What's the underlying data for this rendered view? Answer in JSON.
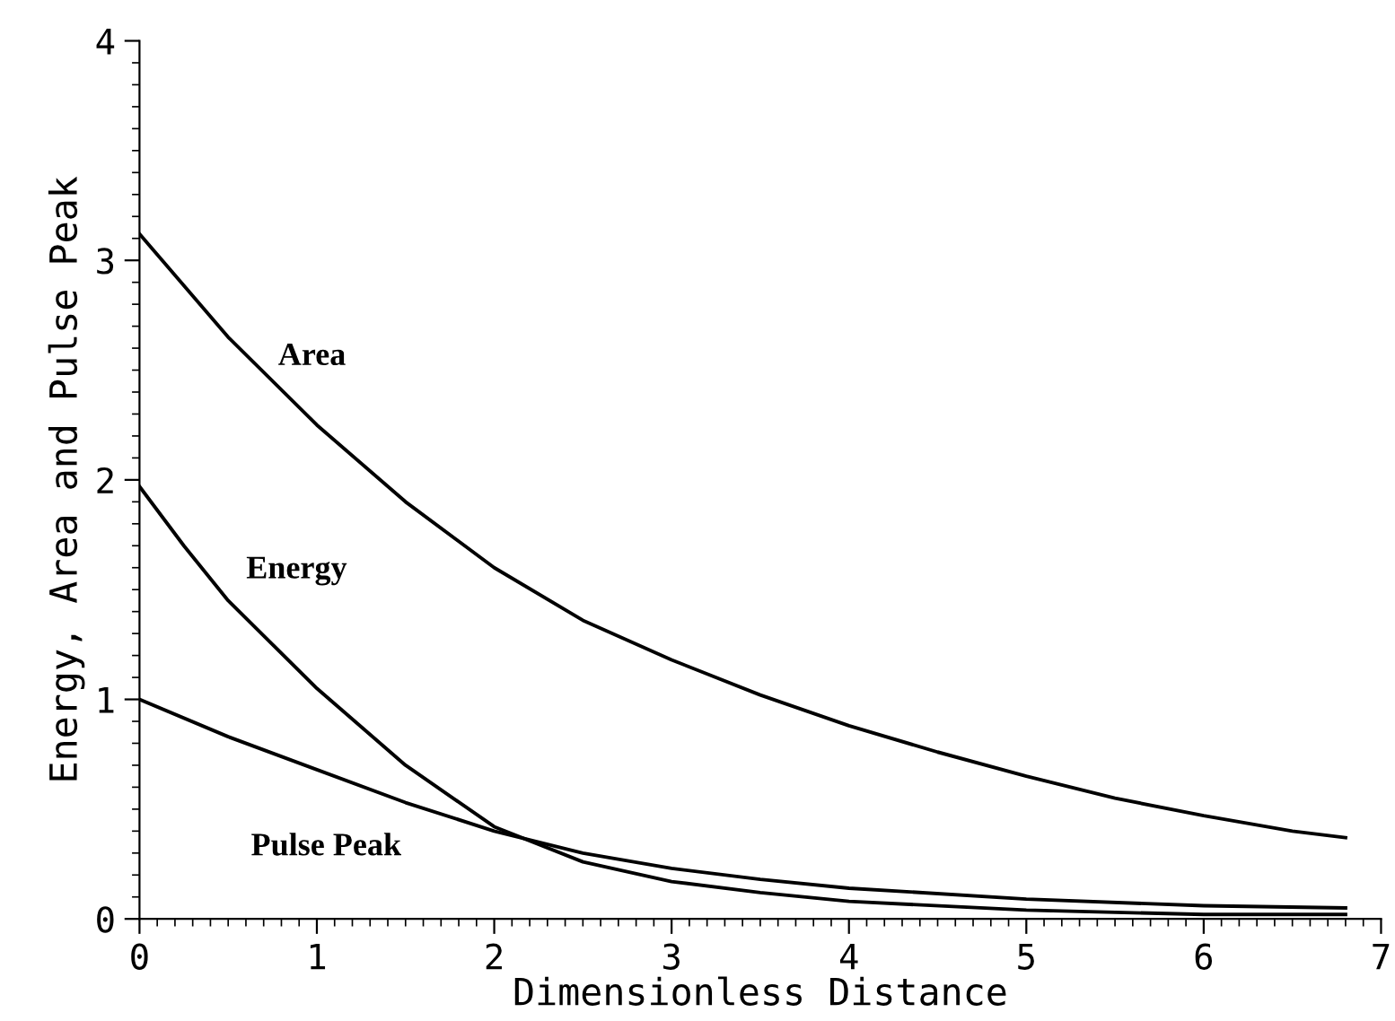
{
  "chart_data": {
    "type": "line",
    "xlabel": "Dimensionless Distance",
    "ylabel": "Energy, Area and Pulse Peak",
    "xlim": [
      0,
      7
    ],
    "xticks": [
      0,
      1,
      2,
      3,
      4,
      5,
      6,
      7
    ],
    "ylim": [
      0,
      4
    ],
    "yticks": [
      0,
      1,
      2,
      3,
      4
    ],
    "grid": false,
    "line_style": "solid",
    "marker": "none",
    "series": [
      {
        "name": "Area",
        "color": "#000000",
        "x": [
          0,
          0.5,
          1,
          1.5,
          2,
          2.5,
          3,
          3.5,
          4,
          4.5,
          5,
          5.5,
          6,
          6.5,
          6.8
        ],
        "values": [
          3.12,
          2.65,
          2.25,
          1.9,
          1.6,
          1.36,
          1.18,
          1.02,
          0.88,
          0.76,
          0.65,
          0.55,
          0.47,
          0.4,
          0.37
        ]
      },
      {
        "name": "Energy",
        "color": "#000000",
        "x": [
          0,
          0.25,
          0.5,
          1,
          1.5,
          2,
          2.5,
          3,
          3.5,
          4,
          5,
          6,
          6.8
        ],
        "values": [
          1.97,
          1.7,
          1.45,
          1.05,
          0.7,
          0.42,
          0.26,
          0.17,
          0.12,
          0.08,
          0.04,
          0.02,
          0.02
        ]
      },
      {
        "name": "Pulse Peak",
        "color": "#000000",
        "x": [
          0,
          0.5,
          1,
          1.5,
          2,
          2.5,
          3,
          3.5,
          4,
          5,
          6,
          6.8
        ],
        "values": [
          1.0,
          0.83,
          0.68,
          0.53,
          0.4,
          0.3,
          0.23,
          0.18,
          0.14,
          0.09,
          0.06,
          0.05
        ]
      }
    ]
  }
}
